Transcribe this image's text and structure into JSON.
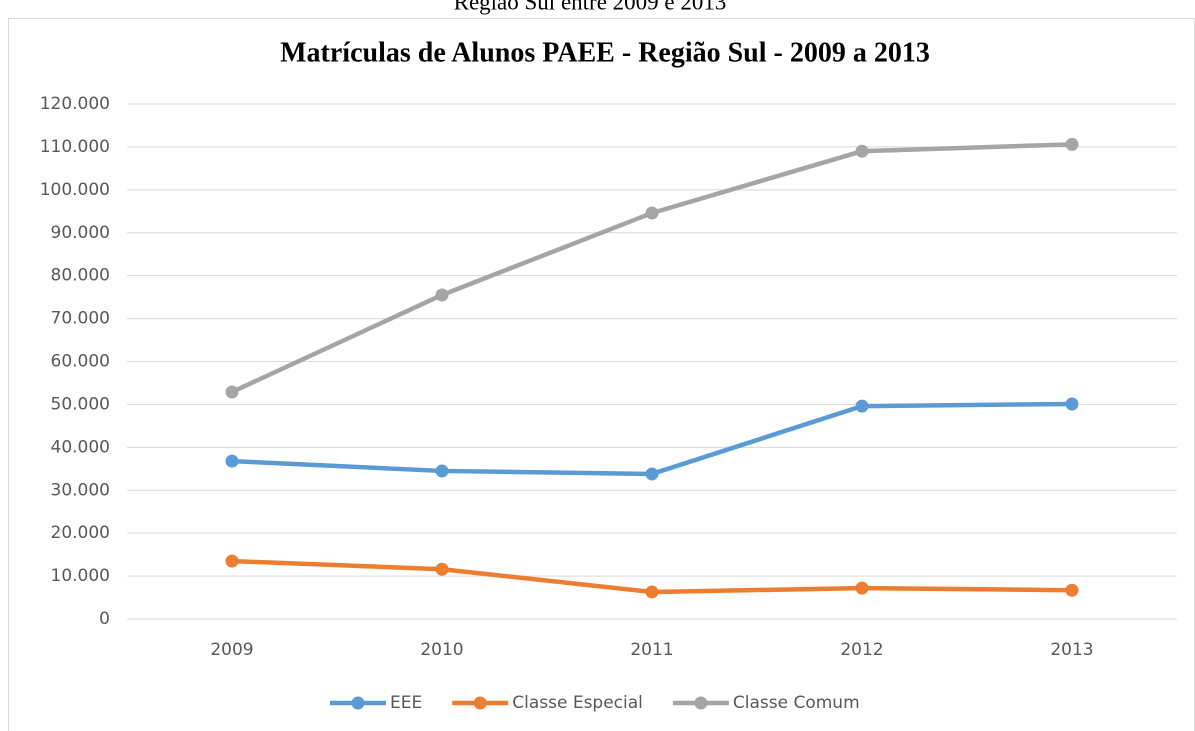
{
  "caption": "Região Sul entre 2009 e 2013",
  "chart_data": {
    "type": "line",
    "title": "Matrículas de Alunos PAEE - Região Sul - 2009 a 2013",
    "categories": [
      "2009",
      "2010",
      "2011",
      "2012",
      "2013"
    ],
    "series": [
      {
        "name": "EEE",
        "color": "#5b9bd5",
        "values": [
          36800,
          34500,
          33800,
          49600,
          50100
        ]
      },
      {
        "name": "Classe Especial",
        "color": "#ed7d31",
        "values": [
          13500,
          11600,
          6300,
          7200,
          6700
        ]
      },
      {
        "name": "Classe Comum",
        "color": "#a5a5a5",
        "values": [
          52900,
          75500,
          94600,
          109000,
          110600
        ]
      }
    ],
    "ylim": [
      0,
      120000
    ],
    "yticks": [
      0,
      {
        "value": 10000,
        "label": "10.000"
      },
      {
        "value": 20000,
        "label": "20.000"
      },
      {
        "value": 30000,
        "label": "30.000"
      },
      {
        "value": 40000,
        "label": "40.000"
      },
      {
        "value": 50000,
        "label": "50.000"
      },
      {
        "value": 60000,
        "label": "60.000"
      },
      {
        "value": 70000,
        "label": "70.000"
      },
      {
        "value": 80000,
        "label": "80.000"
      },
      {
        "value": 90000,
        "label": "90.000"
      },
      {
        "value": 100000,
        "label": "100.000"
      },
      {
        "value": 110000,
        "label": "110.000"
      },
      {
        "value": 120000,
        "label": "120.000"
      }
    ],
    "grid": true,
    "legend": "bottom"
  }
}
